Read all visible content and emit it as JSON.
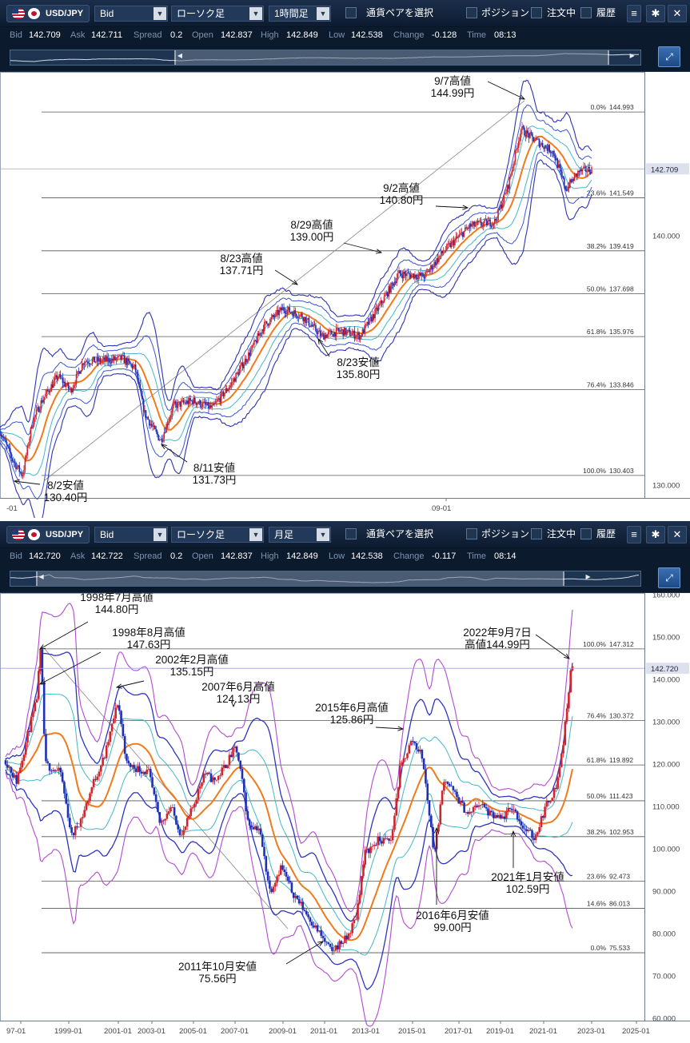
{
  "top": {
    "symbol": "USD/JPY",
    "price_type": "Bid",
    "chart_type": "ローソク足",
    "timeframe": "1時間足",
    "pair_select": "通貨ペアを選択",
    "positions": "ポジション",
    "orders": "注文中",
    "history": "履歴",
    "quote": {
      "bid_label": "Bid",
      "bid": "142.709",
      "ask_label": "Ask",
      "ask": "142.711",
      "spread_label": "Spread",
      "spread": "0.2",
      "open_label": "Open",
      "open": "142.837",
      "high_label": "High",
      "high": "142.849",
      "low_label": "Low",
      "low": "142.538",
      "change_label": "Change",
      "change": "-0.128",
      "time_label": "Time",
      "time": "08:13"
    },
    "nav_window": [
      0.26,
      0.95
    ],
    "colors": {
      "bg": "#0c1a2e",
      "accent": "#3b6fb2"
    }
  },
  "bottom": {
    "symbol": "USD/JPY",
    "price_type": "Bid",
    "chart_type": "ローソク足",
    "timeframe": "月足",
    "pair_select": "通貨ペアを選択",
    "positions": "ポジション",
    "orders": "注文中",
    "history": "履歴",
    "quote": {
      "bid_label": "Bid",
      "bid": "142.720",
      "ask_label": "Ask",
      "ask": "142.722",
      "spread_label": "Spread",
      "spread": "0.2",
      "open_label": "Open",
      "open": "142.837",
      "high_label": "High",
      "high": "142.849",
      "low_label": "Low",
      "low": "142.538",
      "change_label": "Change",
      "change": "-0.117",
      "time_label": "Time",
      "time": "08:14"
    },
    "nav_window": [
      0.04,
      0.88
    ]
  },
  "chart_data": [
    {
      "type": "candlestick",
      "timeframe": "1時間足",
      "x_tick_labels": [
        "-01",
        "09-01"
      ],
      "y_tick_labels": [
        "130.000",
        "140.000"
      ],
      "ylim": [
        129.5,
        146.6
      ],
      "last_price": "142.709",
      "fibonacci": [
        {
          "pct": "0.0%",
          "price": 144.993,
          "price_text": "144.993"
        },
        {
          "pct": "23.6%",
          "price": 141.549,
          "price_text": "141.549"
        },
        {
          "pct": "38.2%",
          "price": 139.419,
          "price_text": "139.419"
        },
        {
          "pct": "50.0%",
          "price": 137.698,
          "price_text": "137.698"
        },
        {
          "pct": "61.8%",
          "price": 135.976,
          "price_text": "135.976"
        },
        {
          "pct": "76.4%",
          "price": 133.846,
          "price_text": "133.846"
        },
        {
          "pct": "100.0%",
          "price": 130.403,
          "price_text": "130.403"
        }
      ],
      "annotations": [
        {
          "lines": [
            "9/7高値",
            "144.99円"
          ]
        },
        {
          "lines": [
            "9/2高値",
            "140.80円"
          ]
        },
        {
          "lines": [
            "8/29高値",
            "139.00円"
          ]
        },
        {
          "lines": [
            "8/23高値",
            "137.71円"
          ]
        },
        {
          "lines": [
            "8/23安値",
            "135.80円"
          ]
        },
        {
          "lines": [
            "8/11安値",
            "131.73円"
          ]
        },
        {
          "lines": [
            "8/2安値",
            "130.40円"
          ]
        }
      ],
      "path": [
        [
          0,
          132.2
        ],
        [
          0.02,
          131.0
        ],
        [
          0.035,
          130.4
        ],
        [
          0.05,
          132.5
        ],
        [
          0.065,
          133.4
        ],
        [
          0.09,
          134.4
        ],
        [
          0.11,
          133.8
        ],
        [
          0.13,
          135.0
        ],
        [
          0.16,
          135.0
        ],
        [
          0.19,
          135.1
        ],
        [
          0.21,
          134.7
        ],
        [
          0.225,
          132.9
        ],
        [
          0.24,
          132.2
        ],
        [
          0.25,
          131.8
        ],
        [
          0.27,
          133.2
        ],
        [
          0.3,
          133.4
        ],
        [
          0.33,
          133.1
        ],
        [
          0.36,
          134.1
        ],
        [
          0.39,
          135.4
        ],
        [
          0.41,
          136.4
        ],
        [
          0.44,
          137.1
        ],
        [
          0.47,
          136.8
        ],
        [
          0.5,
          136.0
        ],
        [
          0.53,
          136.2
        ],
        [
          0.56,
          136.0
        ],
        [
          0.59,
          137.2
        ],
        [
          0.62,
          138.5
        ],
        [
          0.66,
          138.4
        ],
        [
          0.69,
          139.4
        ],
        [
          0.73,
          140.4
        ],
        [
          0.77,
          140.6
        ],
        [
          0.79,
          142.0
        ],
        [
          0.81,
          144.3
        ],
        [
          0.83,
          143.9
        ],
        [
          0.86,
          143.4
        ],
        [
          0.88,
          141.9
        ],
        [
          0.9,
          142.6
        ],
        [
          0.92,
          142.7
        ]
      ]
    },
    {
      "type": "candlestick",
      "timeframe": "月足",
      "x_tick_labels": [
        "97-01",
        "1999-01",
        "2001-01",
        "2003-01",
        "2005-01",
        "2007-01",
        "2009-01",
        "2011-01",
        "2013-01",
        "2015-01",
        "2017-01",
        "2019-01",
        "2021-01",
        "2023-01",
        "2025-01"
      ],
      "y_tick_labels": [
        "160.000",
        "150.000",
        "140.000",
        "130.000",
        "120.000",
        "110.000",
        "100.000",
        "90.000",
        "80.000",
        "70.000",
        "60.000"
      ],
      "ylim": [
        59.5,
        160.5
      ],
      "last_price": "142.720",
      "fibonacci": [
        {
          "pct": "100.0%",
          "price": 147.312,
          "price_text": "147.312"
        },
        {
          "pct": "76.4%",
          "price": 130.372,
          "price_text": "130.372"
        },
        {
          "pct": "61.8%",
          "price": 119.892,
          "price_text": "119.892"
        },
        {
          "pct": "50.0%",
          "price": 111.423,
          "price_text": "111.423"
        },
        {
          "pct": "38.2%",
          "price": 102.953,
          "price_text": "102.953"
        },
        {
          "pct": "23.6%",
          "price": 92.473,
          "price_text": "92.473"
        },
        {
          "pct": "14.6%",
          "price": 86.013,
          "price_text": "86.013"
        },
        {
          "pct": "0.0%",
          "price": 75.533,
          "price_text": "75.533"
        }
      ],
      "annotations": [
        {
          "lines": [
            "1998年7月高値",
            "144.80円"
          ]
        },
        {
          "lines": [
            "1998年8月高値",
            "147.63円"
          ]
        },
        {
          "lines": [
            "2002年2月高値",
            "135.15円"
          ]
        },
        {
          "lines": [
            "2007年6月高値",
            "124.13円"
          ]
        },
        {
          "lines": [
            "2015年6月高値",
            "125.86円"
          ]
        },
        {
          "lines": [
            "2022年9月7日",
            "高値144.99円"
          ]
        },
        {
          "lines": [
            "2016年6月安値",
            "99.00円"
          ]
        },
        {
          "lines": [
            "2021年1月安値",
            "102.59円"
          ]
        },
        {
          "lines": [
            "2011年10月安値",
            "75.56円"
          ]
        }
      ],
      "path": [
        [
          1997.0,
          121
        ],
        [
          1997.5,
          116
        ],
        [
          1998.0,
          127
        ],
        [
          1998.4,
          135
        ],
        [
          1998.6,
          147.6
        ],
        [
          1998.8,
          120
        ],
        [
          1999.5,
          118
        ],
        [
          2000.0,
          103
        ],
        [
          2000.5,
          108
        ],
        [
          2001.0,
          116
        ],
        [
          2001.5,
          122
        ],
        [
          2002.1,
          135
        ],
        [
          2002.5,
          120
        ],
        [
          2003.0,
          119
        ],
        [
          2003.5,
          118
        ],
        [
          2004.0,
          106
        ],
        [
          2004.5,
          110
        ],
        [
          2005.0,
          103
        ],
        [
          2005.5,
          110
        ],
        [
          2006.0,
          118
        ],
        [
          2006.5,
          116
        ],
        [
          2007.0,
          120
        ],
        [
          2007.45,
          124.1
        ],
        [
          2007.8,
          114
        ],
        [
          2008.0,
          106
        ],
        [
          2008.5,
          105
        ],
        [
          2009.0,
          90
        ],
        [
          2009.5,
          96
        ],
        [
          2010.0,
          90
        ],
        [
          2010.5,
          86
        ],
        [
          2011.0,
          82
        ],
        [
          2011.8,
          75.6
        ],
        [
          2012.0,
          77
        ],
        [
          2012.5,
          79
        ],
        [
          2012.9,
          84
        ],
        [
          2013.3,
          99
        ],
        [
          2013.9,
          102
        ],
        [
          2014.5,
          102
        ],
        [
          2014.9,
          119
        ],
        [
          2015.45,
          125.9
        ],
        [
          2015.9,
          122
        ],
        [
          2016.45,
          99
        ],
        [
          2016.9,
          117
        ],
        [
          2017.5,
          112
        ],
        [
          2018.0,
          108
        ],
        [
          2018.5,
          111
        ],
        [
          2019.0,
          108
        ],
        [
          2019.5,
          107
        ],
        [
          2020.0,
          110
        ],
        [
          2020.5,
          105
        ],
        [
          2021.0,
          102.6
        ],
        [
          2021.5,
          110
        ],
        [
          2022.0,
          115
        ],
        [
          2022.3,
          125
        ],
        [
          2022.5,
          135
        ],
        [
          2022.68,
          144.99
        ],
        [
          2022.72,
          142.7
        ]
      ]
    }
  ]
}
